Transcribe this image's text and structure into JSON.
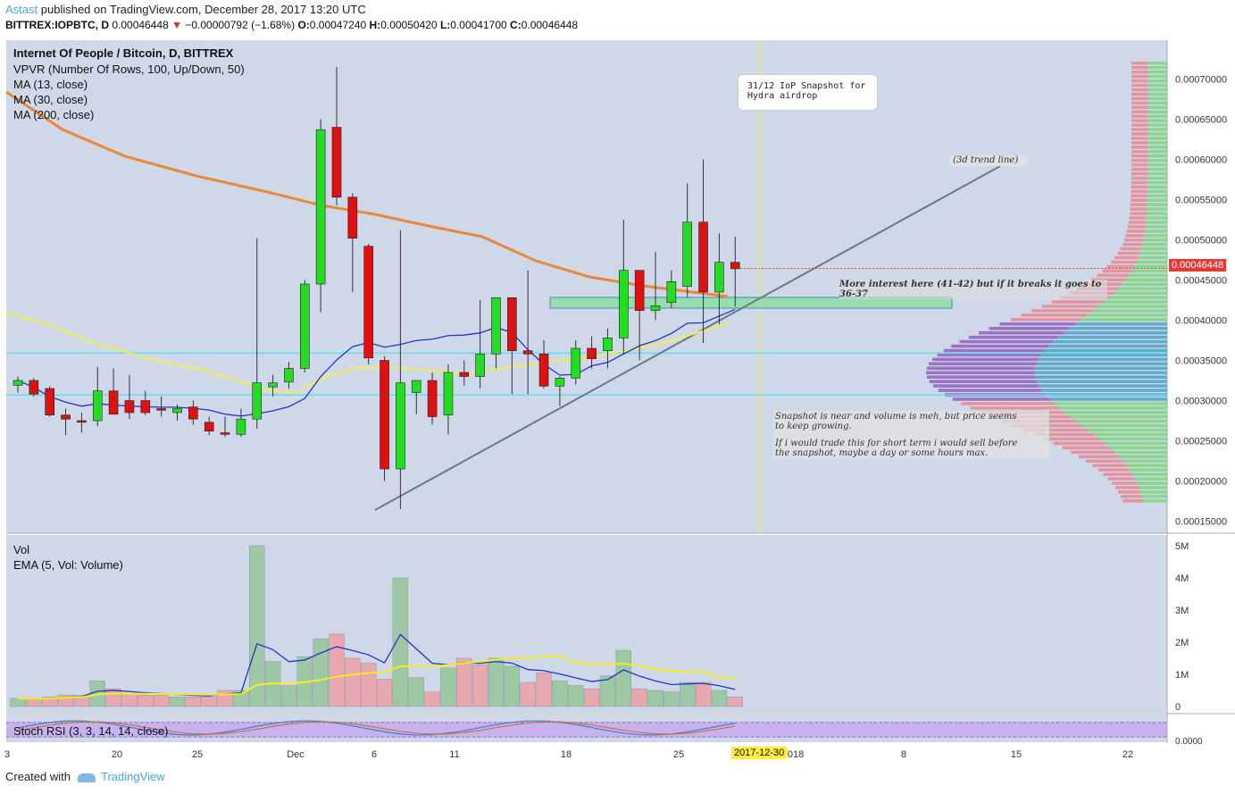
{
  "header": {
    "author": "Astast",
    "published": "published on TradingView.com, December 28, 2017 13:20 UTC",
    "symbol": "BITTREX:IOPBTC, D",
    "close_value": "0.00046448",
    "change_arrow": "▼",
    "change": "−0.00000792 (−1.68%)",
    "o_label": "O:",
    "o_value": "0.00047240",
    "h_label": "H:",
    "h_value": "0.00050420",
    "l_label": "L:",
    "l_value": "0.00041700",
    "c_label": "C:",
    "c_value": "0.00046448"
  },
  "legend": {
    "title": "Internet Of People / Bitcoin, D, BITTREX",
    "vpvr": "VPVR (Number Of Rows, 100, Up/Down, 50)",
    "ma13": "MA (13, close)",
    "ma30": "MA (30, close)",
    "ma200": "MA (200, close)",
    "vol": "Vol",
    "ema": "EMA (5, Vol: Volume)",
    "stoch": "Stoch RSI (3, 3, 14, 14, close)"
  },
  "annotations": {
    "snapshot_box": "31/12 IoP Snapshot for\nHydra airdrop",
    "trend_line": "(3d trend line)",
    "interest_line1": "More interest here (41-42) but if it breaks it goes to",
    "interest_line2": "36-37",
    "snap_note1": "Snapshot is near and volume is meh, but price seems",
    "snap_note2": "to keep growing.",
    "snap_note3": "If i would trade this for short term i would sell before",
    "snap_note4": "the snapshot, maybe a day or some hours max."
  },
  "current_price_tag": "0.00046448",
  "date_tag": "2017-12-30",
  "footer": {
    "created_with": "Created with",
    "brand": "TradingView"
  },
  "colors": {
    "up": "#22dd22",
    "down": "#dd1111",
    "bg": "#cfd8e8",
    "ma200": "#e8883a",
    "ma30": "#f2ec55",
    "ma13": "#2233cc"
  },
  "chart_data": [
    {
      "type": "candlestick",
      "title": "Internet Of People / Bitcoin, D, BITTREX",
      "y_axis_ticks": [
        "0.00015000",
        "0.00020000",
        "0.00025000",
        "0.00030000",
        "0.00035000",
        "0.00040000",
        "0.00045000",
        "0.00050000",
        "0.00055000",
        "0.00060000",
        "0.00065000",
        "0.00070000"
      ],
      "x_axis_ticks": [
        "3",
        "20",
        "25",
        "Dec",
        "6",
        "11",
        "18",
        "25",
        "2018",
        "8",
        "15",
        "22"
      ],
      "ylim": [
        0.000135,
        0.000725
      ],
      "candles": [
        {
          "o": 0.000319,
          "h": 0.00033,
          "l": 0.00031,
          "c": 0.000325
        },
        {
          "o": 0.000325,
          "h": 0.000328,
          "l": 0.000305,
          "c": 0.000308
        },
        {
          "o": 0.000315,
          "h": 0.000318,
          "l": 0.00028,
          "c": 0.000282
        },
        {
          "o": 0.000282,
          "h": 0.00029,
          "l": 0.000257,
          "c": 0.000277
        },
        {
          "o": 0.000275,
          "h": 0.000285,
          "l": 0.00026,
          "c": 0.000273
        },
        {
          "o": 0.000275,
          "h": 0.000342,
          "l": 0.000268,
          "c": 0.000312
        },
        {
          "o": 0.000312,
          "h": 0.00034,
          "l": 0.000285,
          "c": 0.000283
        },
        {
          "o": 0.0003,
          "h": 0.000332,
          "l": 0.000277,
          "c": 0.000285
        },
        {
          "o": 0.0003,
          "h": 0.000312,
          "l": 0.000282,
          "c": 0.000285
        },
        {
          "o": 0.00029,
          "h": 0.000305,
          "l": 0.00028,
          "c": 0.000288
        },
        {
          "o": 0.000285,
          "h": 0.000295,
          "l": 0.000275,
          "c": 0.00029
        },
        {
          "o": 0.000292,
          "h": 0.0003,
          "l": 0.00027,
          "c": 0.000277
        },
        {
          "o": 0.000273,
          "h": 0.00028,
          "l": 0.000257,
          "c": 0.000262
        },
        {
          "o": 0.00026,
          "h": 0.00028,
          "l": 0.000255,
          "c": 0.000258
        },
        {
          "o": 0.000258,
          "h": 0.00029,
          "l": 0.000255,
          "c": 0.000277
        },
        {
          "o": 0.000277,
          "h": 0.000502,
          "l": 0.000265,
          "c": 0.000322
        },
        {
          "o": 0.000317,
          "h": 0.000332,
          "l": 0.000305,
          "c": 0.000322
        },
        {
          "o": 0.000323,
          "h": 0.000348,
          "l": 0.000315,
          "c": 0.00034
        },
        {
          "o": 0.00034,
          "h": 0.00045,
          "l": 0.000335,
          "c": 0.000445
        },
        {
          "o": 0.000445,
          "h": 0.00065,
          "l": 0.00041,
          "c": 0.000637
        },
        {
          "o": 0.00064,
          "h": 0.000715,
          "l": 0.000543,
          "c": 0.000553
        },
        {
          "o": 0.000553,
          "h": 0.000558,
          "l": 0.000435,
          "c": 0.000502
        },
        {
          "o": 0.000492,
          "h": 0.000495,
          "l": 0.000345,
          "c": 0.000353
        },
        {
          "o": 0.00035,
          "h": 0.000355,
          "l": 0.0002,
          "c": 0.000215
        },
        {
          "o": 0.000215,
          "h": 0.000512,
          "l": 0.000165,
          "c": 0.000322
        },
        {
          "o": 0.00031,
          "h": 0.000325,
          "l": 0.000283,
          "c": 0.000325
        },
        {
          "o": 0.000325,
          "h": 0.000335,
          "l": 0.00027,
          "c": 0.00028
        },
        {
          "o": 0.000282,
          "h": 0.000345,
          "l": 0.000258,
          "c": 0.000335
        },
        {
          "o": 0.000335,
          "h": 0.00035,
          "l": 0.000318,
          "c": 0.00033
        },
        {
          "o": 0.00033,
          "h": 0.000425,
          "l": 0.000315,
          "c": 0.000358
        },
        {
          "o": 0.000358,
          "h": 0.000428,
          "l": 0.00034,
          "c": 0.000428
        },
        {
          "o": 0.000428,
          "h": 0.000428,
          "l": 0.000308,
          "c": 0.000362
        },
        {
          "o": 0.000362,
          "h": 0.000462,
          "l": 0.000308,
          "c": 0.000358
        },
        {
          "o": 0.000358,
          "h": 0.000375,
          "l": 0.000315,
          "c": 0.000318
        },
        {
          "o": 0.000318,
          "h": 0.00033,
          "l": 0.000293,
          "c": 0.000328
        },
        {
          "o": 0.000328,
          "h": 0.000375,
          "l": 0.00032,
          "c": 0.000365
        },
        {
          "o": 0.000365,
          "h": 0.00038,
          "l": 0.00034,
          "c": 0.000352
        },
        {
          "o": 0.000362,
          "h": 0.00039,
          "l": 0.00034,
          "c": 0.000378
        },
        {
          "o": 0.000378,
          "h": 0.000525,
          "l": 0.000358,
          "c": 0.000462
        },
        {
          "o": 0.000462,
          "h": 0.000462,
          "l": 0.00035,
          "c": 0.000412
        },
        {
          "o": 0.000412,
          "h": 0.000485,
          "l": 0.0004,
          "c": 0.000418
        },
        {
          "o": 0.000422,
          "h": 0.000462,
          "l": 0.000415,
          "c": 0.000448
        },
        {
          "o": 0.000442,
          "h": 0.00057,
          "l": 0.000428,
          "c": 0.000522
        },
        {
          "o": 0.000522,
          "h": 0.0006,
          "l": 0.000372,
          "c": 0.000435
        },
        {
          "o": 0.000435,
          "h": 0.000508,
          "l": 0.000395,
          "c": 0.000472
        },
        {
          "o": 0.000472,
          "h": 0.000504,
          "l": 0.000417,
          "c": 0.000464
        }
      ]
    },
    {
      "type": "bar",
      "title": "Vol",
      "y_axis_ticks": [
        "0",
        "1M",
        "2M",
        "3M",
        "4M",
        "5M"
      ],
      "ylim": [
        0,
        5.2
      ],
      "values_millions": [
        0.25,
        0.2,
        0.3,
        0.35,
        0.35,
        0.8,
        0.55,
        0.4,
        0.35,
        0.35,
        0.3,
        0.3,
        0.3,
        0.5,
        0.5,
        5.0,
        1.4,
        0.65,
        1.55,
        2.1,
        2.25,
        1.5,
        1.35,
        0.85,
        4.0,
        0.9,
        0.45,
        1.2,
        1.5,
        1.3,
        1.5,
        1.25,
        0.75,
        1.05,
        0.8,
        0.65,
        0.55,
        0.95,
        1.75,
        0.55,
        0.5,
        0.45,
        0.75,
        0.75,
        0.5,
        0.3
      ],
      "up": [
        true,
        false,
        false,
        false,
        false,
        true,
        false,
        false,
        false,
        false,
        true,
        false,
        false,
        false,
        true,
        true,
        true,
        true,
        true,
        true,
        false,
        false,
        false,
        false,
        true,
        true,
        false,
        true,
        false,
        false,
        true,
        true,
        false,
        false,
        true,
        true,
        false,
        true,
        true,
        false,
        true,
        true,
        true,
        false,
        true,
        false
      ]
    }
  ]
}
